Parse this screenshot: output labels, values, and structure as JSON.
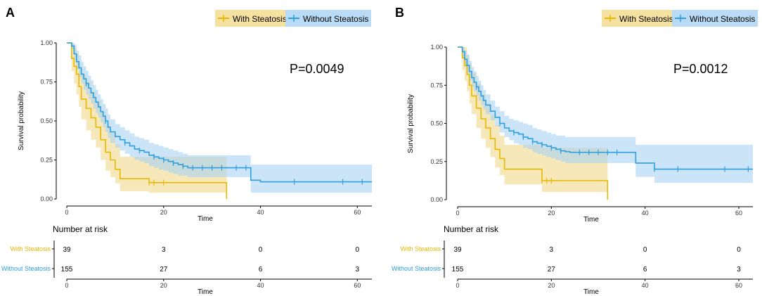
{
  "colors": {
    "with": "#E7B800",
    "without": "#2E9FDF",
    "with_band": "#F2D98A",
    "without_band": "#A9D2F3",
    "axis": "#000000"
  },
  "panels": [
    {
      "label": "A",
      "pvalue": "P=0.0049",
      "legend": [
        "With Steatosis",
        "Without Steatosis"
      ]
    },
    {
      "label": "B",
      "pvalue": "P=0.0012",
      "legend": [
        "With Steatosis",
        "Without Steatosis"
      ]
    }
  ],
  "chart_data": [
    {
      "type": "line",
      "subtype": "kaplan-meier",
      "panel": "A",
      "title": "",
      "xlabel": "Time",
      "ylabel": "Survival probability",
      "xlim": [
        0,
        63
      ],
      "ylim": [
        0,
        1
      ],
      "xticks": [
        0,
        20,
        40,
        60
      ],
      "yticks": [
        "0.00",
        "0.25",
        "0.50",
        "0.75",
        "1.00"
      ],
      "annotation": "P=0.0049",
      "series": [
        {
          "name": "With Steatosis",
          "color_key": "with",
          "x": [
            0,
            1,
            1.5,
            2,
            2.5,
            3,
            4,
            5,
            6,
            7,
            8,
            9,
            10,
            11,
            17,
            33
          ],
          "y": [
            1.0,
            0.9,
            0.85,
            0.8,
            0.72,
            0.64,
            0.58,
            0.52,
            0.46,
            0.38,
            0.3,
            0.25,
            0.19,
            0.13,
            0.105,
            0.0
          ],
          "upper": [
            1.0,
            1.0,
            0.97,
            0.93,
            0.87,
            0.8,
            0.75,
            0.69,
            0.63,
            0.56,
            0.47,
            0.42,
            0.35,
            0.27,
            0.27,
            0.27
          ],
          "lower": [
            1.0,
            0.82,
            0.74,
            0.67,
            0.59,
            0.51,
            0.44,
            0.38,
            0.33,
            0.25,
            0.18,
            0.14,
            0.1,
            0.05,
            0.04,
            0.0
          ],
          "censor_x": [
            17,
            18,
            20
          ]
        },
        {
          "name": "Without Steatosis",
          "color_key": "without",
          "x": [
            0,
            1,
            1.5,
            2,
            2.5,
            3,
            3.5,
            4,
            4.5,
            5,
            5.5,
            6,
            6.5,
            7,
            7.5,
            8,
            8.5,
            9,
            10,
            11,
            12,
            13,
            14,
            15,
            16,
            17,
            18,
            19,
            20,
            21,
            22,
            23,
            24,
            25,
            38,
            40
          ],
          "y": [
            1.0,
            0.98,
            0.93,
            0.88,
            0.84,
            0.8,
            0.77,
            0.74,
            0.71,
            0.68,
            0.65,
            0.62,
            0.59,
            0.56,
            0.53,
            0.5,
            0.46,
            0.43,
            0.4,
            0.38,
            0.36,
            0.34,
            0.32,
            0.31,
            0.3,
            0.28,
            0.27,
            0.26,
            0.25,
            0.24,
            0.23,
            0.22,
            0.21,
            0.2,
            0.12,
            0.11
          ],
          "upper": [
            1.0,
            1.0,
            0.99,
            0.95,
            0.92,
            0.88,
            0.85,
            0.82,
            0.79,
            0.76,
            0.73,
            0.7,
            0.67,
            0.64,
            0.61,
            0.58,
            0.54,
            0.51,
            0.48,
            0.46,
            0.44,
            0.42,
            0.4,
            0.39,
            0.38,
            0.36,
            0.35,
            0.34,
            0.33,
            0.32,
            0.31,
            0.3,
            0.29,
            0.28,
            0.22,
            0.22
          ],
          "lower": [
            1.0,
            0.96,
            0.89,
            0.83,
            0.78,
            0.74,
            0.7,
            0.67,
            0.64,
            0.61,
            0.58,
            0.55,
            0.52,
            0.49,
            0.46,
            0.43,
            0.39,
            0.36,
            0.33,
            0.31,
            0.29,
            0.27,
            0.25,
            0.24,
            0.23,
            0.21,
            0.2,
            0.19,
            0.18,
            0.17,
            0.16,
            0.15,
            0.15,
            0.14,
            0.04,
            0.04
          ],
          "censor_x": [
            4,
            8,
            12,
            15,
            18,
            20,
            22,
            24,
            26,
            28,
            30,
            32,
            35,
            37,
            47,
            57,
            61
          ]
        }
      ],
      "risk_table": {
        "title": "Number at risk",
        "xlabel": "Time",
        "times": [
          0,
          20,
          40,
          60
        ],
        "rows": [
          {
            "name": "With Steatosis",
            "color_key": "with",
            "values": [
              "39",
              "3",
              "0",
              "0"
            ]
          },
          {
            "name": "Without Steatosis",
            "color_key": "without",
            "values": [
              "155",
              "27",
              "6",
              "3"
            ]
          }
        ]
      }
    },
    {
      "type": "line",
      "subtype": "kaplan-meier",
      "panel": "B",
      "title": "",
      "xlabel": "Time",
      "ylabel": "Survival probability",
      "xlim": [
        0,
        63
      ],
      "ylim": [
        0,
        1
      ],
      "xticks": [
        0,
        20,
        40,
        60
      ],
      "yticks": [
        "0.00",
        "0.25",
        "0.50",
        "0.75",
        "1.00"
      ],
      "annotation": "P=0.0012",
      "series": [
        {
          "name": "With Steatosis",
          "color_key": "with",
          "x": [
            0,
            1,
            1.5,
            2,
            2.5,
            3,
            4,
            5,
            6,
            7,
            8,
            9,
            10,
            18,
            32
          ],
          "y": [
            1.0,
            0.93,
            0.88,
            0.82,
            0.75,
            0.68,
            0.6,
            0.53,
            0.47,
            0.4,
            0.33,
            0.27,
            0.2,
            0.125,
            0.0
          ],
          "upper": [
            1.0,
            1.0,
            1.0,
            0.95,
            0.89,
            0.83,
            0.76,
            0.69,
            0.63,
            0.56,
            0.49,
            0.42,
            0.36,
            0.34,
            0.34
          ],
          "lower": [
            1.0,
            0.85,
            0.78,
            0.71,
            0.63,
            0.56,
            0.47,
            0.4,
            0.34,
            0.28,
            0.21,
            0.16,
            0.1,
            0.05,
            0.05
          ],
          "censor_x": [
            18,
            19,
            20
          ]
        },
        {
          "name": "Without Steatosis",
          "color_key": "without",
          "x": [
            0,
            1,
            1.5,
            2,
            2.5,
            3,
            3.5,
            4,
            4.5,
            5,
            5.5,
            6,
            7,
            8,
            9,
            10,
            11,
            12,
            13,
            14,
            15,
            16,
            17,
            18,
            19,
            20,
            21,
            22,
            23,
            24,
            38,
            42
          ],
          "y": [
            1.0,
            0.97,
            0.92,
            0.88,
            0.84,
            0.8,
            0.77,
            0.74,
            0.71,
            0.68,
            0.65,
            0.62,
            0.58,
            0.54,
            0.5,
            0.47,
            0.45,
            0.44,
            0.43,
            0.41,
            0.4,
            0.38,
            0.37,
            0.36,
            0.35,
            0.34,
            0.33,
            0.32,
            0.315,
            0.31,
            0.24,
            0.2
          ],
          "upper": [
            1.0,
            1.0,
            0.98,
            0.95,
            0.91,
            0.87,
            0.84,
            0.81,
            0.78,
            0.75,
            0.72,
            0.69,
            0.65,
            0.61,
            0.58,
            0.55,
            0.53,
            0.52,
            0.51,
            0.5,
            0.49,
            0.47,
            0.46,
            0.45,
            0.44,
            0.43,
            0.42,
            0.42,
            0.41,
            0.41,
            0.36,
            0.36
          ],
          "lower": [
            1.0,
            0.94,
            0.87,
            0.82,
            0.78,
            0.74,
            0.71,
            0.68,
            0.65,
            0.62,
            0.59,
            0.56,
            0.52,
            0.48,
            0.44,
            0.41,
            0.39,
            0.37,
            0.36,
            0.34,
            0.33,
            0.31,
            0.3,
            0.29,
            0.28,
            0.27,
            0.26,
            0.25,
            0.24,
            0.24,
            0.15,
            0.11
          ],
          "censor_x": [
            4,
            9,
            12,
            14,
            16,
            18,
            20,
            22,
            26,
            28,
            30,
            32,
            34,
            42,
            47,
            57,
            62
          ]
        }
      ],
      "risk_table": {
        "title": "Number at risk",
        "xlabel": "Time",
        "times": [
          0,
          20,
          40,
          60
        ],
        "rows": [
          {
            "name": "With Steatosis",
            "color_key": "with",
            "values": [
              "39",
              "3",
              "0",
              "0"
            ]
          },
          {
            "name": "Without Steatosis",
            "color_key": "without",
            "values": [
              "155",
              "27",
              "6",
              "3"
            ]
          }
        ]
      }
    }
  ]
}
